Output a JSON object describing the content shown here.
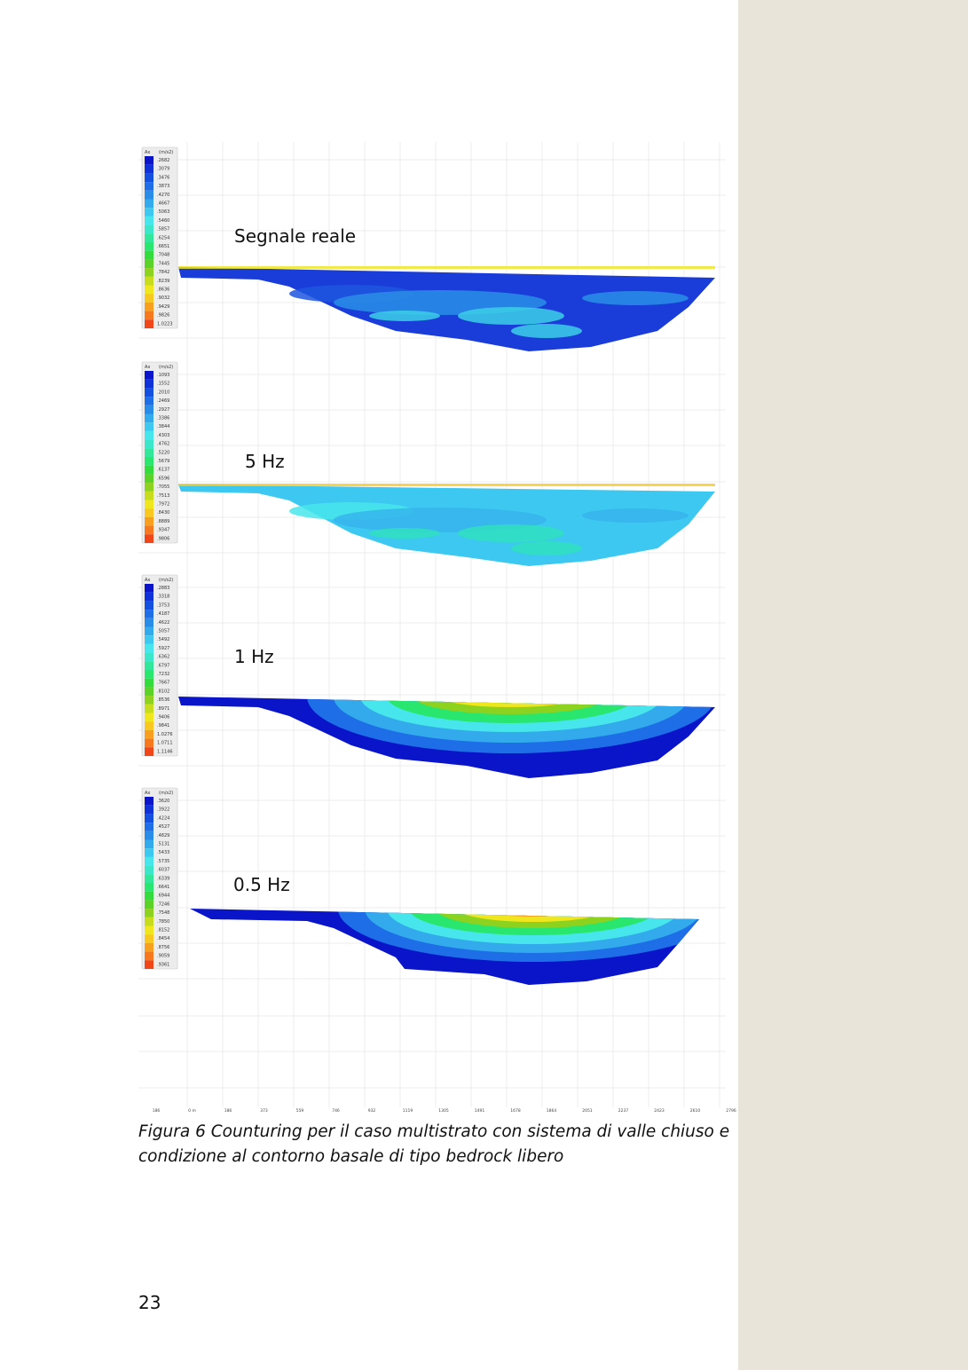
{
  "panels": [
    {
      "label": "Segnale reale",
      "legend_header": [
        "Ax",
        "(m/s2)"
      ],
      "legend_values": [
        ".2682",
        ".3079",
        ".3476",
        ".3873",
        ".4270",
        ".4667",
        ".5063",
        ".5460",
        ".5857",
        ".6254",
        ".6651",
        ".7048",
        ".7445",
        ".7842",
        ".8239",
        ".8636",
        ".9032",
        ".9429",
        ".9826",
        "1.0223"
      ]
    },
    {
      "label": "5 Hz",
      "legend_header": [
        "Ax",
        "(m/s2)"
      ],
      "legend_values": [
        ".1093",
        ".1552",
        ".2010",
        ".2469",
        ".2927",
        ".3386",
        ".3844",
        ".4303",
        ".4762",
        ".5220",
        ".5679",
        ".6137",
        ".6596",
        ".7055",
        ".7513",
        ".7972",
        ".8430",
        ".8889",
        ".9347",
        ".9806"
      ]
    },
    {
      "label": "1 Hz",
      "legend_header": [
        "Ax",
        "(m/s2)"
      ],
      "legend_values": [
        ".2883",
        ".3318",
        ".3753",
        ".4187",
        ".4622",
        ".5057",
        ".5492",
        ".5927",
        ".6362",
        ".6797",
        ".7232",
        ".7667",
        ".8102",
        ".8536",
        ".8971",
        ".9406",
        ".9841",
        "1.0276",
        "1.0711",
        "1.1146"
      ]
    },
    {
      "label": "0.5 Hz",
      "legend_header": [
        "Ax",
        "(m/s2)"
      ],
      "legend_values": [
        ".3620",
        ".3922",
        ".4224",
        ".4527",
        ".4829",
        ".5131",
        ".5433",
        ".5735",
        ".6037",
        ".6339",
        ".6641",
        ".6944",
        ".7246",
        ".7548",
        ".7850",
        ".8152",
        ".8454",
        ".8756",
        ".9059",
        ".9361"
      ]
    }
  ],
  "legend_colors": [
    "#0a14c8",
    "#0f32d8",
    "#1450e0",
    "#1e6ee8",
    "#288ce8",
    "#32aaec",
    "#3cc8f0",
    "#46e6ec",
    "#3ce6c8",
    "#32e69a",
    "#28e66e",
    "#32dc3c",
    "#5ad228",
    "#8cd21e",
    "#c8dc1e",
    "#f0e61e",
    "#f8c81e",
    "#f8a01e",
    "#f8781e",
    "#f04618"
  ],
  "x_ticks": [
    "186",
    "0 m",
    "186",
    "373",
    "559",
    "746",
    "932",
    "1119",
    "1305",
    "1491",
    "1678",
    "1864",
    "2051",
    "2237",
    "2423",
    "2610",
    "2796"
  ],
  "caption": "Figura 6 Counturing per il caso multistrato con sistema di valle chiuso e condizione al contorno basale di tipo bedrock libero",
  "page_number": "23"
}
